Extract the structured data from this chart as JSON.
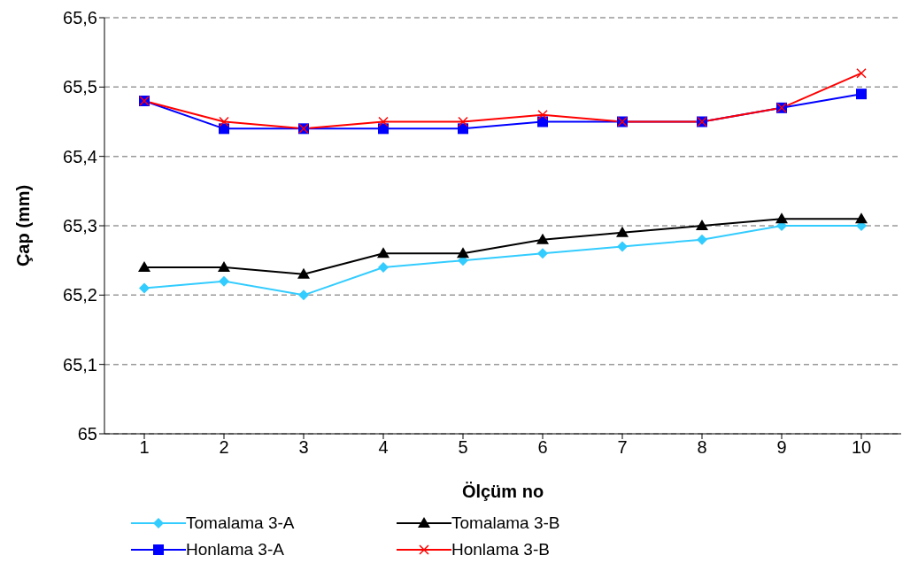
{
  "chart_data": {
    "type": "line",
    "xlabel": "Ölçüm no",
    "ylabel": "Çap (mm)",
    "categories": [
      "1",
      "2",
      "3",
      "4",
      "5",
      "6",
      "7",
      "8",
      "9",
      "10"
    ],
    "series": [
      {
        "name": "Tomalama 3-A",
        "color": "#33ccff",
        "marker": "diamond",
        "values": [
          65.21,
          65.22,
          65.2,
          65.24,
          65.25,
          65.26,
          65.27,
          65.28,
          65.3,
          65.3
        ]
      },
      {
        "name": "Tomalama 3-B",
        "color": "#000000",
        "marker": "triangle",
        "values": [
          65.24,
          65.24,
          65.23,
          65.26,
          65.26,
          65.28,
          65.29,
          65.3,
          65.31,
          65.31
        ]
      },
      {
        "name": "Honlama 3-A",
        "color": "#0000ff",
        "marker": "square",
        "values": [
          65.48,
          65.44,
          65.44,
          65.44,
          65.44,
          65.45,
          65.45,
          65.45,
          65.47,
          65.49
        ]
      },
      {
        "name": "Honlama 3-B",
        "color": "#ff0000",
        "marker": "cross",
        "values": [
          65.48,
          65.45,
          65.44,
          65.45,
          65.45,
          65.46,
          65.45,
          65.45,
          65.47,
          65.52
        ]
      }
    ],
    "ylim": [
      65,
      65.6
    ],
    "yticks": [
      {
        "value": 65,
        "label": "65"
      },
      {
        "value": 65.1,
        "label": "65,1"
      },
      {
        "value": 65.2,
        "label": "65,2"
      },
      {
        "value": 65.3,
        "label": "65,3"
      },
      {
        "value": 65.4,
        "label": "65,4"
      },
      {
        "value": 65.5,
        "label": "65,5"
      },
      {
        "value": 65.6,
        "label": "65,6"
      }
    ],
    "grid": "y",
    "legend": "bottom",
    "line_style": "solid"
  }
}
